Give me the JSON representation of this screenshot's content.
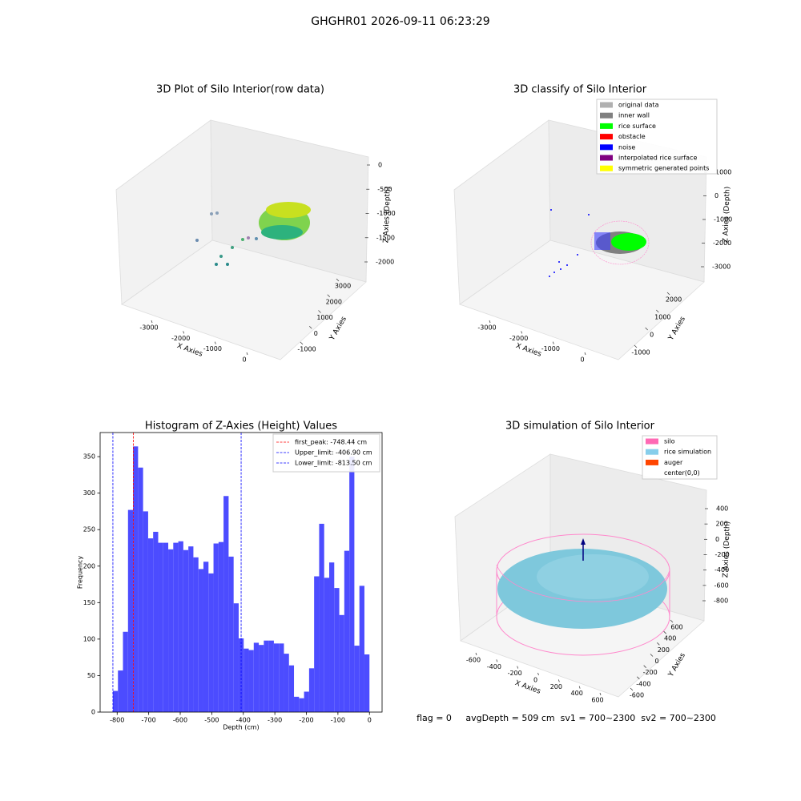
{
  "title": "GHGHR01 2026-09-11 06:23:29",
  "footer": "flag = 0     avgDepth = 509 cm  sv1 = 700~2300  sv2 = 700~2300",
  "chart_data": [
    {
      "type": "scatter3d",
      "title": "3D Plot of Silo Interior(row data)",
      "x_label": "X Axies",
      "y_label": "Y Axies",
      "z_label": "Z Axies (Depth)",
      "xticks": [
        -3000,
        -2000,
        -1000,
        0
      ],
      "yticks": [
        -1000,
        0,
        1000,
        2000,
        3000
      ],
      "zticks": [
        0,
        -500,
        -1000,
        -1500,
        -2000
      ]
    },
    {
      "type": "scatter3d",
      "title": "3D classify of Silo Interior",
      "x_label": "X Axies",
      "y_label": "Y Axies",
      "z_label": "Z Axies (Depth)",
      "xticks": [
        -3000,
        -2000,
        -1000,
        0
      ],
      "yticks": [
        -1000,
        0,
        1000,
        2000
      ],
      "zticks": [
        1000,
        0,
        -1000,
        -2000,
        -3000
      ],
      "legend": [
        {
          "name": "original data",
          "color": "#b0b0b0"
        },
        {
          "name": "inner wall",
          "color": "#808080"
        },
        {
          "name": "rice surface",
          "color": "#00ff00"
        },
        {
          "name": "obstacle",
          "color": "#ff0000"
        },
        {
          "name": "noise",
          "color": "#0000ff"
        },
        {
          "name": "interpolated rice surface",
          "color": "#800080"
        },
        {
          "name": "symmetric generated points",
          "color": "#ffff00"
        }
      ]
    },
    {
      "type": "histogram",
      "title": "Histogram of Z-Axies (Height) Values",
      "x_label": "Depth (cm)",
      "y_label": "Frequency",
      "color": "#4c4cff",
      "bins": [
        -813.5,
        -797.5,
        -781.6,
        -765.6,
        -749.7,
        -733.7,
        -717.8,
        -701.8,
        -685.9,
        -669.9,
        -654.0,
        -638.0,
        -622.1,
        -606.1,
        -590.2,
        -574.2,
        -558.3,
        -542.3,
        -526.4,
        -510.4,
        -494.5,
        -478.5,
        -462.6,
        -446.6,
        -430.7,
        -414.7,
        -398.8,
        -382.8,
        -366.9,
        -350.9,
        -335.0,
        -319.0,
        -303.1,
        -287.1,
        -271.2,
        -255.2,
        -239.3,
        -223.3,
        -207.4,
        -191.4,
        -175.5,
        -159.5,
        -143.6,
        -127.6,
        -111.7,
        -95.7,
        -79.8,
        -63.8,
        -47.9,
        -31.9,
        -16.0,
        0
      ],
      "counts": [
        29,
        57,
        110,
        277,
        364,
        335,
        275,
        238,
        247,
        232,
        232,
        223,
        232,
        234,
        222,
        227,
        212,
        196,
        206,
        190,
        231,
        233,
        296,
        213,
        149,
        101,
        87,
        85,
        95,
        92,
        98,
        98,
        94,
        94,
        80,
        64,
        21,
        19,
        28,
        60,
        186,
        258,
        184,
        205,
        170,
        133,
        221,
        350,
        91,
        173,
        79
      ],
      "xlim": [
        -854,
        40
      ],
      "ylim": [
        0,
        383
      ],
      "xticks": [
        -800,
        -700,
        -600,
        -500,
        -400,
        -300,
        -200,
        -100,
        0
      ],
      "yticks": [
        0,
        50,
        100,
        150,
        200,
        250,
        300,
        350
      ],
      "lines": [
        {
          "name": "first_peak: -748.44 cm",
          "value": -748.44,
          "color": "#ff0000"
        },
        {
          "name": "Upper_limit: -406.90 cm",
          "value": -406.9,
          "color": "#0000ff"
        },
        {
          "name": "Lower_limit: -813.50 cm",
          "value": -813.5,
          "color": "#0000ff"
        }
      ],
      "legend_position": "upper right"
    },
    {
      "type": "surface3d",
      "title": "3D simulation of Silo Interior",
      "x_label": "X Axies",
      "y_label": "Y Axies",
      "z_label": "Z Axies (Depth)",
      "xticks": [
        -600,
        -400,
        -200,
        0,
        200,
        400,
        600
      ],
      "yticks": [
        -600,
        -400,
        -200,
        0,
        200,
        400,
        600
      ],
      "zticks": [
        400,
        200,
        0,
        -200,
        -400,
        -600,
        -800
      ],
      "legend": [
        {
          "name": "silo",
          "color": "#ff69b4"
        },
        {
          "name": "rice simulation",
          "color": "#87ceeb"
        },
        {
          "name": "auger",
          "color": "#ff4500"
        },
        {
          "name": "center(0,0)",
          "color": "#ffffff"
        }
      ]
    }
  ]
}
